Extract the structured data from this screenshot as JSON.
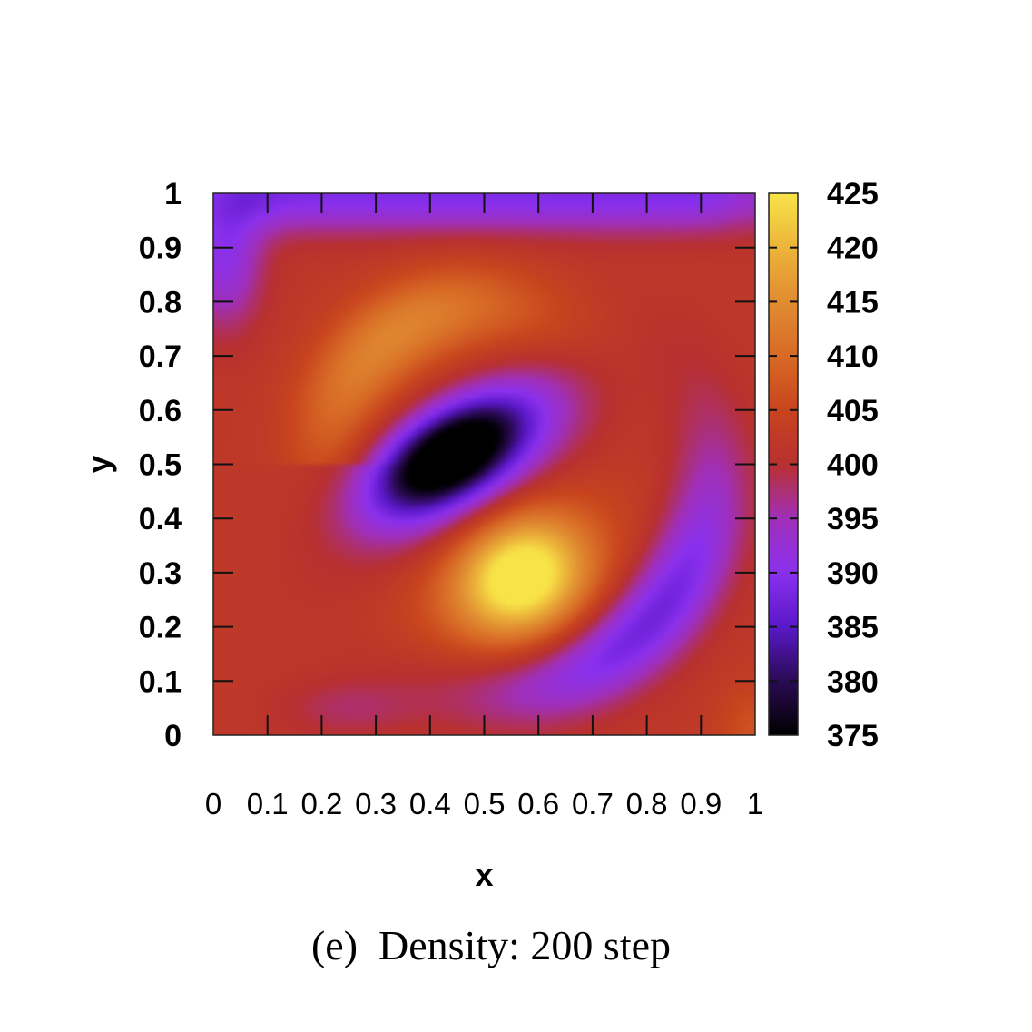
{
  "caption": "(e)  Density: 200 step",
  "chart_data": {
    "type": "heatmap",
    "xlabel": "x",
    "ylabel": "y",
    "xlim": [
      0,
      1
    ],
    "ylim": [
      0,
      1
    ],
    "x_tick_labels": [
      "0",
      "0.1",
      "0.2",
      "0.3",
      "0.4",
      "0.5",
      "0.6",
      "0.7",
      "0.8",
      "0.9",
      "1"
    ],
    "y_tick_labels": [
      "0",
      "0.1",
      "0.2",
      "0.3",
      "0.4",
      "0.5",
      "0.6",
      "0.7",
      "0.8",
      "0.9",
      "1"
    ],
    "colorbar": {
      "range": [
        375,
        425
      ],
      "tick_labels": [
        "375",
        "380",
        "385",
        "390",
        "395",
        "400",
        "405",
        "410",
        "415",
        "420",
        "425"
      ]
    },
    "grid": false,
    "colormap": [
      "#000000",
      "#2a0a54",
      "#5a18c8",
      "#8a30ee",
      "#a02fb8",
      "#b83030",
      "#c8441e",
      "#d86a26",
      "#e08c32",
      "#ecb43a",
      "#f8e448"
    ],
    "field_features": [
      {
        "feature": "minimum",
        "x": 0.43,
        "y": 0.52,
        "value": 376
      },
      {
        "feature": "maximum",
        "x": 0.57,
        "y": 0.29,
        "value": 424
      },
      {
        "feature": "background",
        "value": 402
      }
    ]
  }
}
